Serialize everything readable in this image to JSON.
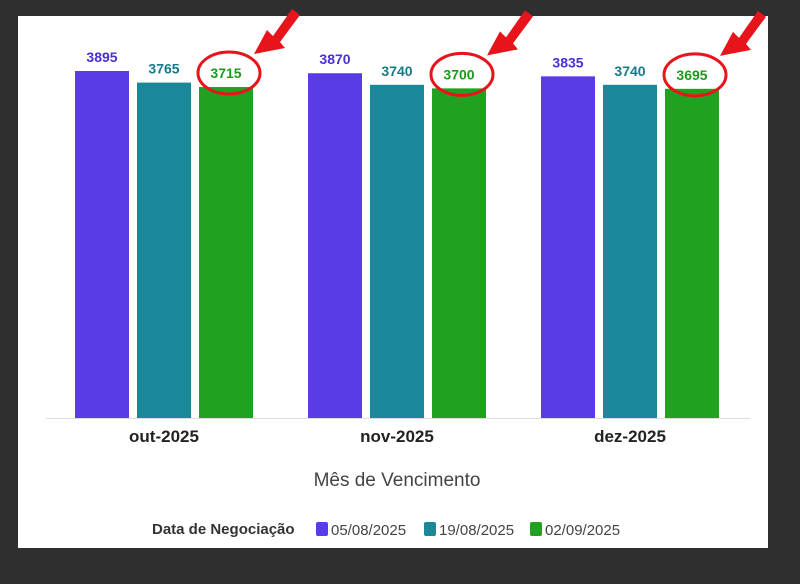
{
  "colors": {
    "series": [
      "#5b3be6",
      "#1a8899",
      "#22a022"
    ],
    "annotation": "#e8141c",
    "baseline": "#dddddd"
  },
  "chart_data": {
    "type": "bar",
    "categories": [
      "out-2025",
      "nov-2025",
      "dez-2025"
    ],
    "series": [
      {
        "name": "05/08/2025",
        "values": [
          3895,
          3870,
          3835
        ]
      },
      {
        "name": "19/08/2025",
        "values": [
          3765,
          3740,
          3740
        ]
      },
      {
        "name": "02/09/2025",
        "values": [
          3715,
          3700,
          3695
        ]
      }
    ],
    "xlabel": "Mês de Vencimento",
    "legend_title": "Data de Negociação",
    "legend_position": "bottom",
    "grid": false,
    "y_axis_visible": false,
    "annotations": "red circles and arrows highlight the 02/09/2025 value in each month"
  }
}
